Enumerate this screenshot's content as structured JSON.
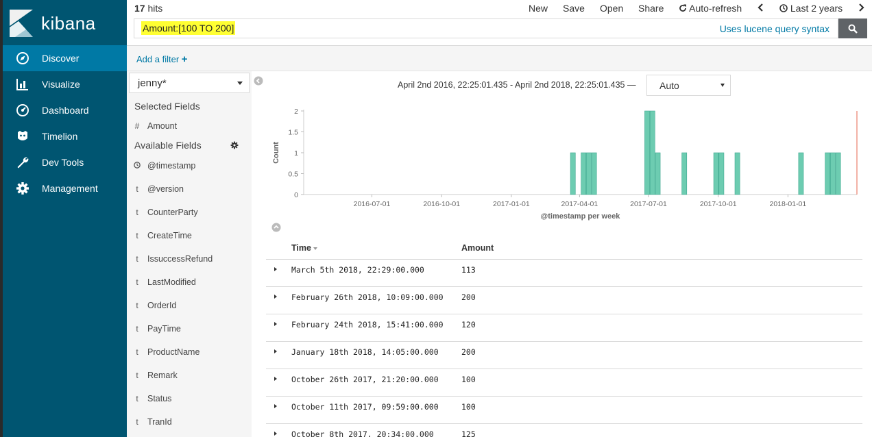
{
  "brand": "kibana",
  "nav": [
    {
      "label": "Discover",
      "icon": "compass-icon",
      "active": true
    },
    {
      "label": "Visualize",
      "icon": "bar-chart-icon",
      "active": false
    },
    {
      "label": "Dashboard",
      "icon": "dashboard-gauge-icon",
      "active": false
    },
    {
      "label": "Timelion",
      "icon": "timelion-icon",
      "active": false
    },
    {
      "label": "Dev Tools",
      "icon": "wrench-icon",
      "active": false
    },
    {
      "label": "Management",
      "icon": "gear-icon",
      "active": false
    }
  ],
  "topbar": {
    "hits_count": "17",
    "hits_label": "hits",
    "menu": {
      "new": "New",
      "save": "Save",
      "open": "Open",
      "share": "Share",
      "auto_refresh": "Auto-refresh",
      "time_range": "Last 2 years"
    }
  },
  "query": {
    "value": "Amount:[100 TO 200]",
    "syntax_link": "Uses lucene query syntax"
  },
  "filter": {
    "add_label": "Add a filter"
  },
  "index_pattern": "jenny*",
  "fields": {
    "selected_title": "Selected Fields",
    "selected": [
      {
        "type": "#",
        "name": "Amount"
      }
    ],
    "available_title": "Available Fields",
    "available": [
      {
        "type": "clock",
        "name": "@timestamp"
      },
      {
        "type": "t",
        "name": "@version"
      },
      {
        "type": "t",
        "name": "CounterParty"
      },
      {
        "type": "t",
        "name": "CreateTime"
      },
      {
        "type": "t",
        "name": "IssuccessRefund"
      },
      {
        "type": "t",
        "name": "LastModified"
      },
      {
        "type": "t",
        "name": "OrderId"
      },
      {
        "type": "t",
        "name": "PayTime"
      },
      {
        "type": "t",
        "name": "ProductName"
      },
      {
        "type": "t",
        "name": "Remark"
      },
      {
        "type": "t",
        "name": "Status"
      },
      {
        "type": "t",
        "name": "TranId"
      }
    ]
  },
  "histogram": {
    "time_range": "April 2nd 2016, 22:25:01.435 - April 2nd 2018, 22:25:01.435 —",
    "interval": "Auto"
  },
  "chart_data": {
    "type": "bar",
    "xlabel": "@timestamp per week",
    "ylabel": "Count",
    "ylim": [
      0,
      2
    ],
    "yticks": [
      0,
      0.5,
      1,
      1.5,
      2
    ],
    "yticklabels": [
      "0",
      "0.5",
      "1",
      "1.5",
      "2"
    ],
    "xlim": [
      "2016-04-02",
      "2018-04-02"
    ],
    "xticks": [
      "2016-07-01",
      "2016-10-01",
      "2017-01-01",
      "2017-04-01",
      "2017-07-01",
      "2017-10-01",
      "2018-01-01"
    ],
    "bar_color": "#6dccb1",
    "bar_edge_color": "#3fa890",
    "now_marker_color": "#e7664c",
    "weeks": [
      "2017-03-20",
      "2017-04-03",
      "2017-04-10",
      "2017-04-17",
      "2017-06-26",
      "2017-07-03",
      "2017-07-10",
      "2017-08-14",
      "2017-09-25",
      "2017-10-02",
      "2017-10-23",
      "2018-01-15",
      "2018-02-19",
      "2018-02-26",
      "2018-03-05"
    ],
    "values": [
      1,
      1,
      1,
      1,
      2,
      2,
      1,
      1,
      1,
      1,
      1,
      1,
      1,
      1,
      1
    ]
  },
  "table": {
    "columns": {
      "time": "Time",
      "amount": "Amount"
    },
    "rows": [
      {
        "time": "March 5th 2018, 22:29:00.000",
        "amount": "113"
      },
      {
        "time": "February 26th 2018, 10:09:00.000",
        "amount": "200"
      },
      {
        "time": "February 24th 2018, 15:41:00.000",
        "amount": "120"
      },
      {
        "time": "January 18th 2018, 14:05:00.000",
        "amount": "200"
      },
      {
        "time": "October 26th 2017, 21:20:00.000",
        "amount": "100"
      },
      {
        "time": "October 11th 2017, 09:59:00.000",
        "amount": "100"
      },
      {
        "time": "October 8th 2017, 20:34:00.000",
        "amount": "125"
      }
    ]
  }
}
